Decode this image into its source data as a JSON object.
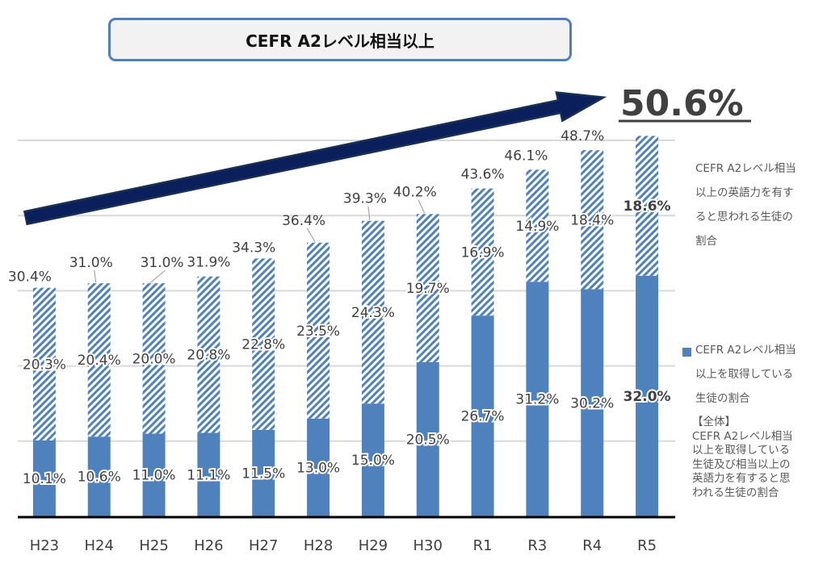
{
  "title": "CEFR A2レベル相当以上",
  "headline": "50.6%",
  "colors": {
    "solid": "#4f81bd",
    "hatch": "#4f81bd",
    "arrow": "#0b1f5c",
    "title_border": "#4f7fbd",
    "grid": "#d9d9d9",
    "axis": "#000000"
  },
  "legend": {
    "hatched": [
      "CEFR A2レベル相当",
      "以上の英語力を有す",
      "ると思われる生徒の",
      "割合"
    ],
    "solid": [
      "CEFR A2レベル相当",
      "以上を取得している",
      "生徒の割合"
    ],
    "total": [
      "【全体】",
      "CEFR A2レベル相当",
      "以上を取得している",
      "生徒及び相当以上の",
      "英語力を有すると思",
      "われる生徒の割合"
    ]
  },
  "chart_data": {
    "type": "bar",
    "stacked": true,
    "title": "CEFR A2レベル相当以上",
    "xlabel": "",
    "ylabel": "",
    "ylim": [
      0,
      50
    ],
    "grid": true,
    "categories": [
      "H23",
      "H24",
      "H25",
      "H26",
      "H27",
      "H28",
      "H29",
      "H30",
      "R1",
      "R3",
      "R4",
      "R5"
    ],
    "series": [
      {
        "name": "CEFR A2レベル相当以上を取得している生徒の割合",
        "style": "solid",
        "values": [
          10.1,
          10.6,
          11.0,
          11.1,
          11.5,
          13.0,
          15.0,
          20.5,
          26.7,
          31.2,
          30.2,
          32.0
        ],
        "labels": [
          "10.1%",
          "10.6%",
          "11.0%",
          "11.1%",
          "11.5%",
          "13.0%",
          "15.0%",
          "20.5%",
          "26.7%",
          "31.2%",
          "30.2%",
          "32.0%"
        ]
      },
      {
        "name": "CEFR A2レベル相当以上の英語力を有すると思われる生徒の割合",
        "style": "hatched",
        "values": [
          20.3,
          20.4,
          20.0,
          20.8,
          22.8,
          23.5,
          24.3,
          19.7,
          16.9,
          14.9,
          18.4,
          18.6
        ],
        "labels": [
          "20.3%",
          "20.4%",
          "20.0%",
          "20.8%",
          "22.8%",
          "23.5%",
          "24.3%",
          "19.7%",
          "16.9%",
          "14.9%",
          "18.4%",
          "18.6%"
        ]
      }
    ],
    "totals": [
      30.4,
      31.0,
      31.0,
      31.9,
      34.3,
      36.4,
      39.3,
      40.2,
      43.6,
      46.1,
      48.7,
      50.6
    ],
    "total_labels": [
      "30.4%",
      "31.0%",
      "31.0%",
      "31.9%",
      "34.3%",
      "36.4%",
      "39.3%",
      "40.2%",
      "43.6%",
      "46.1%",
      "48.7%",
      ""
    ],
    "annotations": [
      "50.6%"
    ],
    "legend_position": "right"
  }
}
